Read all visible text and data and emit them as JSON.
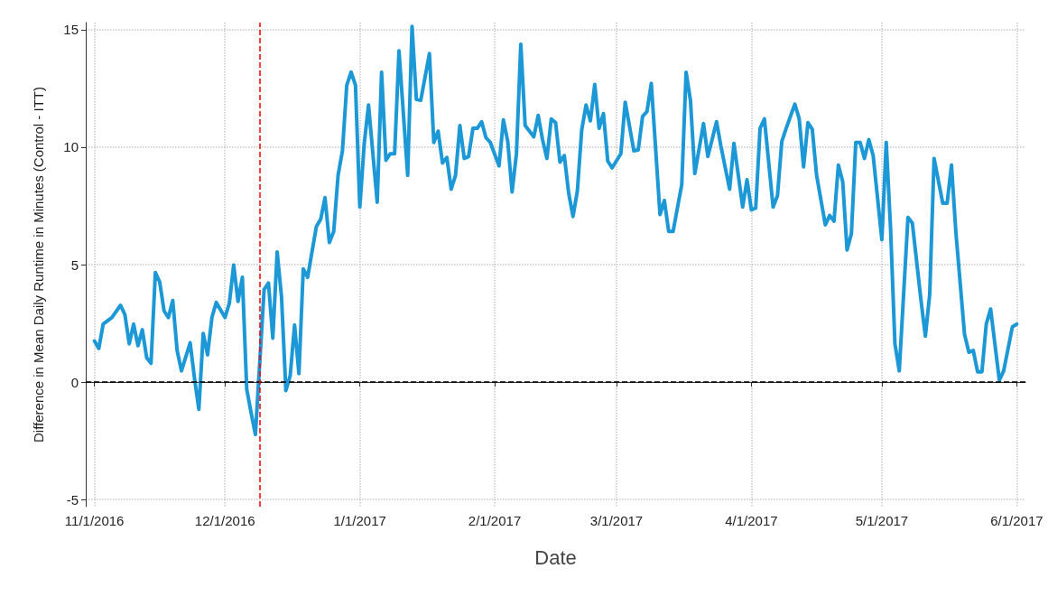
{
  "chart_data": {
    "type": "line",
    "xlabel": "Date",
    "ylabel": "Difference in Mean Daily Runtime in Minutes (Control - ITT)",
    "x": [
      "2016-11-01",
      "2016-11-02",
      "2016-11-03",
      "2016-11-05",
      "2016-11-07",
      "2016-11-08",
      "2016-11-09",
      "2016-11-10",
      "2016-11-11",
      "2016-11-12",
      "2016-11-13",
      "2016-11-14",
      "2016-11-15",
      "2016-11-16",
      "2016-11-17",
      "2016-11-18",
      "2016-11-19",
      "2016-11-20",
      "2016-11-21",
      "2016-11-23",
      "2016-11-24",
      "2016-11-25",
      "2016-11-26",
      "2016-11-27",
      "2016-11-28",
      "2016-11-29",
      "2016-12-01",
      "2016-12-02",
      "2016-12-03",
      "2016-12-04",
      "2016-12-05",
      "2016-12-06",
      "2016-12-07",
      "2016-12-08",
      "2016-12-10",
      "2016-12-11",
      "2016-12-12",
      "2016-12-13",
      "2016-12-14",
      "2016-12-15",
      "2016-12-16",
      "2016-12-17",
      "2016-12-18",
      "2016-12-19",
      "2016-12-20",
      "2016-12-22",
      "2016-12-23",
      "2016-12-24",
      "2016-12-25",
      "2016-12-26",
      "2016-12-27",
      "2016-12-28",
      "2016-12-29",
      "2016-12-30",
      "2016-12-31",
      "2017-01-01",
      "2017-01-02",
      "2017-01-03",
      "2017-01-05",
      "2017-01-06",
      "2017-01-07",
      "2017-01-08",
      "2017-01-09",
      "2017-01-10",
      "2017-01-12",
      "2017-01-13",
      "2017-01-14",
      "2017-01-15",
      "2017-01-17",
      "2017-01-18",
      "2017-01-19",
      "2017-01-20",
      "2017-01-21",
      "2017-01-22",
      "2017-01-23",
      "2017-01-24",
      "2017-01-25",
      "2017-01-26",
      "2017-01-27",
      "2017-01-28",
      "2017-01-29",
      "2017-01-30",
      "2017-01-31",
      "2017-02-02",
      "2017-02-03",
      "2017-02-04",
      "2017-02-05",
      "2017-02-06",
      "2017-02-07",
      "2017-02-08",
      "2017-02-10",
      "2017-02-11",
      "2017-02-12",
      "2017-02-13",
      "2017-02-14",
      "2017-02-15",
      "2017-02-16",
      "2017-02-17",
      "2017-02-18",
      "2017-02-19",
      "2017-02-20",
      "2017-02-21",
      "2017-02-22",
      "2017-02-23",
      "2017-02-24",
      "2017-02-25",
      "2017-02-26",
      "2017-02-27",
      "2017-02-28",
      "2017-03-02",
      "2017-03-03",
      "2017-03-05",
      "2017-03-06",
      "2017-03-07",
      "2017-03-08",
      "2017-03-09",
      "2017-03-11",
      "2017-03-12",
      "2017-03-13",
      "2017-03-14",
      "2017-03-16",
      "2017-03-17",
      "2017-03-18",
      "2017-03-19",
      "2017-03-21",
      "2017-03-22",
      "2017-03-24",
      "2017-03-25",
      "2017-03-27",
      "2017-03-28",
      "2017-03-30",
      "2017-03-31",
      "2017-04-01",
      "2017-04-02",
      "2017-04-03",
      "2017-04-04",
      "2017-04-06",
      "2017-04-07",
      "2017-04-08",
      "2017-04-09",
      "2017-04-11",
      "2017-04-12",
      "2017-04-13",
      "2017-04-14",
      "2017-04-15",
      "2017-04-16",
      "2017-04-18",
      "2017-04-19",
      "2017-04-20",
      "2017-04-21",
      "2017-04-22",
      "2017-04-23",
      "2017-04-24",
      "2017-04-25",
      "2017-04-26",
      "2017-04-27",
      "2017-04-28",
      "2017-04-29",
      "2017-05-01",
      "2017-05-02",
      "2017-05-03",
      "2017-05-04",
      "2017-05-05",
      "2017-05-07",
      "2017-05-08",
      "2017-05-10",
      "2017-05-11",
      "2017-05-12",
      "2017-05-13",
      "2017-05-15",
      "2017-05-16",
      "2017-05-17",
      "2017-05-18",
      "2017-05-20",
      "2017-05-21",
      "2017-05-22",
      "2017-05-23",
      "2017-05-24",
      "2017-05-25",
      "2017-05-26",
      "2017-05-28",
      "2017-05-29",
      "2017-05-31",
      "2017-06-01"
    ],
    "series": [
      {
        "color": "#1b98d5",
        "values": [
          1.75,
          1.43,
          2.47,
          2.75,
          3.27,
          2.87,
          1.63,
          2.47,
          1.55,
          2.23,
          1.04,
          0.8,
          4.66,
          4.26,
          3.03,
          2.75,
          3.47,
          1.35,
          0.48,
          1.67,
          0.16,
          -1.16,
          2.07,
          1.16,
          2.75,
          3.39,
          2.75,
          3.35,
          4.98,
          3.43,
          4.46,
          -0.3,
          -1.3,
          -2.23,
          3.94,
          4.22,
          1.87,
          5.54,
          3.63,
          -0.36,
          0.28,
          2.43,
          0.36,
          4.82,
          4.46,
          6.61,
          6.93,
          7.85,
          5.94,
          6.41,
          8.8,
          9.84,
          12.63,
          13.19,
          12.63,
          7.45,
          10.12,
          11.79,
          7.65,
          13.19,
          9.44,
          9.72,
          9.72,
          14.1,
          8.8,
          15.14,
          12.03,
          11.99,
          13.98,
          10.2,
          10.68,
          9.32,
          9.56,
          8.21,
          8.8,
          10.92,
          9.52,
          9.6,
          10.8,
          10.8,
          11.08,
          10.4,
          10.2,
          9.2,
          11.16,
          10.24,
          8.09,
          9.72,
          14.38,
          10.92,
          10.44,
          11.35,
          10.32,
          9.52,
          11.2,
          11.04,
          9.36,
          9.64,
          8.05,
          7.05,
          8.13,
          10.72,
          11.79,
          11.12,
          12.67,
          10.8,
          11.43,
          9.4,
          9.12,
          9.72,
          11.91,
          9.84,
          9.88,
          11.31,
          11.51,
          12.71,
          7.13,
          7.73,
          6.41,
          6.41,
          8.41,
          13.19,
          11.99,
          8.88,
          11.0,
          9.6,
          11.08,
          10.04,
          8.21,
          10.16,
          7.45,
          8.61,
          7.33,
          7.41,
          10.8,
          11.2,
          7.45,
          7.93,
          10.24,
          10.8,
          11.83,
          11.2,
          9.16,
          11.04,
          10.76,
          8.8,
          6.69,
          7.09,
          6.85,
          9.24,
          8.53,
          5.62,
          6.33,
          10.2,
          10.2,
          9.52,
          10.32,
          9.64,
          6.06,
          10.2,
          6.53,
          1.63,
          0.48,
          7.01,
          6.77,
          3.47,
          1.95,
          3.75,
          9.52,
          7.61,
          7.61,
          9.24,
          6.41,
          2.03,
          1.27,
          1.35,
          0.44,
          0.44,
          2.47,
          3.11,
          0.08,
          0.48,
          2.35,
          2.47
        ]
      }
    ],
    "xlim": [
      "2016-10-30",
      "2017-06-03"
    ],
    "xticks": [
      {
        "value": "2016-11-01",
        "label": "11/1/2016"
      },
      {
        "value": "2016-12-01",
        "label": "12/1/2016"
      },
      {
        "value": "2017-01-01",
        "label": "1/1/2017"
      },
      {
        "value": "2017-02-01",
        "label": "2/1/2017"
      },
      {
        "value": "2017-03-01",
        "label": "3/1/2017"
      },
      {
        "value": "2017-04-01",
        "label": "4/1/2017"
      },
      {
        "value": "2017-05-01",
        "label": "5/1/2017"
      },
      {
        "value": "2017-06-01",
        "label": "6/1/2017"
      }
    ],
    "ylim": [
      -5.3,
      15.3
    ],
    "yticks": [
      -5,
      0,
      5,
      10,
      15
    ],
    "grid": true,
    "marker": "none",
    "line_style": "solid",
    "ref_lines": [
      {
        "axis": "y",
        "value": 0,
        "color": "#000000",
        "line_style": "dashed"
      },
      {
        "axis": "x",
        "value": "2016-12-09",
        "color": "#ff0000",
        "line_style": "dashed"
      }
    ]
  }
}
